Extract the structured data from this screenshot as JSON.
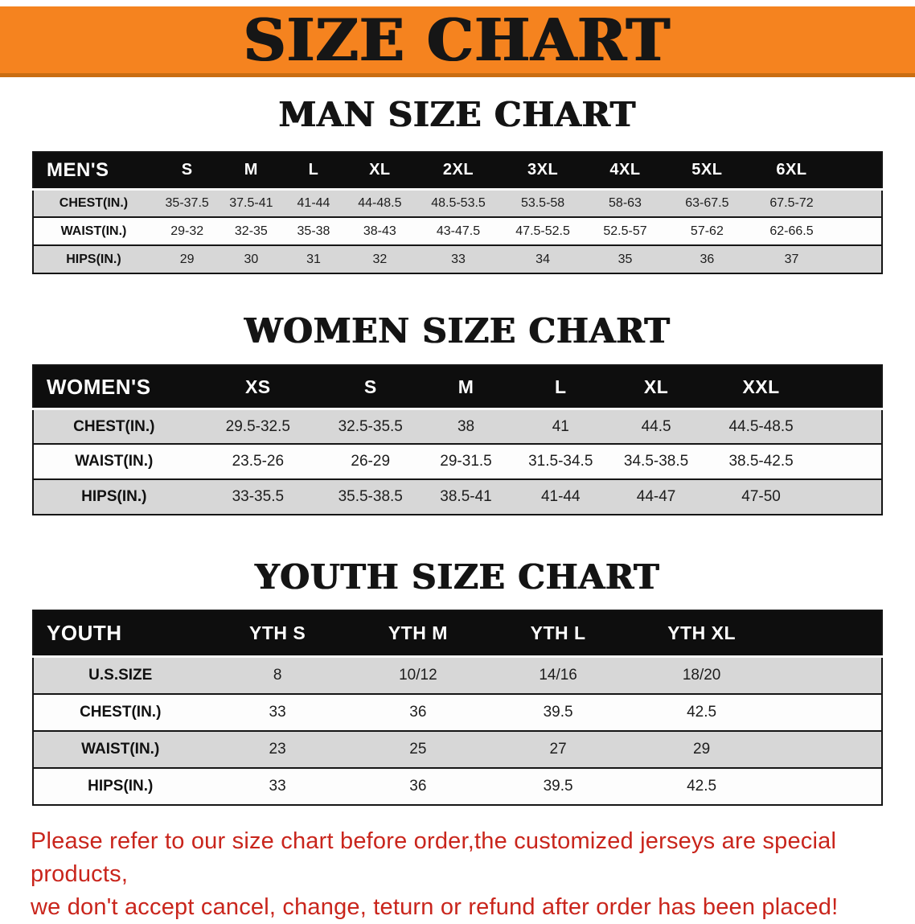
{
  "banner": {
    "title": "SIZE CHART"
  },
  "colors": {
    "banner_orange": "#f5831f",
    "banner_edge": "#c96d12",
    "header_black": "#0e0e0e",
    "row_gray": "#d7d7d7",
    "row_white": "#fdfdfd",
    "disclaimer_red": "#c9251c"
  },
  "sections": [
    {
      "heading": "MAN SIZE CHART",
      "table": {
        "header": [
          "MEN'S",
          "S",
          "M",
          "L",
          "XL",
          "2XL",
          "3XL",
          "4XL",
          "5XL",
          "6XL"
        ],
        "rows": [
          {
            "label": "CHEST(IN.)",
            "values": [
              "35-37.5",
              "37.5-41",
              "41-44",
              "44-48.5",
              "48.5-53.5",
              "53.5-58",
              "58-63",
              "63-67.5",
              "67.5-72"
            ]
          },
          {
            "label": "WAIST(IN.)",
            "values": [
              "29-32",
              "32-35",
              "35-38",
              "38-43",
              "43-47.5",
              "47.5-52.5",
              "52.5-57",
              "57-62",
              "62-66.5"
            ]
          },
          {
            "label": "HIPS(IN.)",
            "values": [
              "29",
              "30",
              "31",
              "32",
              "33",
              "34",
              "35",
              "36",
              "37"
            ]
          }
        ]
      }
    },
    {
      "heading": "WOMEN SIZE CHART",
      "table": {
        "header": [
          "WOMEN'S",
          "XS",
          "S",
          "M",
          "L",
          "XL",
          "XXL"
        ],
        "rows": [
          {
            "label": "CHEST(IN.)",
            "values": [
              "29.5-32.5",
              "32.5-35.5",
              "38",
              "41",
              "44.5",
              "44.5-48.5"
            ]
          },
          {
            "label": "WAIST(IN.)",
            "values": [
              "23.5-26",
              "26-29",
              "29-31.5",
              "31.5-34.5",
              "34.5-38.5",
              "38.5-42.5"
            ]
          },
          {
            "label": "HIPS(IN.)",
            "values": [
              "33-35.5",
              "35.5-38.5",
              "38.5-41",
              "41-44",
              "44-47",
              "47-50"
            ]
          }
        ]
      }
    },
    {
      "heading": "YOUTH SIZE CHART",
      "table": {
        "header": [
          "YOUTH",
          "YTH S",
          "YTH M",
          "YTH L",
          "YTH XL"
        ],
        "rows": [
          {
            "label": "U.S.SIZE",
            "values": [
              "8",
              "10/12",
              "14/16",
              "18/20"
            ]
          },
          {
            "label": "CHEST(IN.)",
            "values": [
              "33",
              "36",
              "39.5",
              "42.5"
            ]
          },
          {
            "label": "WAIST(IN.)",
            "values": [
              "23",
              "25",
              "27",
              "29"
            ]
          },
          {
            "label": "HIPS(IN.)",
            "values": [
              "33",
              "36",
              "39.5",
              "42.5"
            ]
          }
        ]
      }
    }
  ],
  "disclaimer": {
    "line1": "Please refer to our size chart before order,the customized jerseys are special products,",
    "line2": "we don't accept cancel, change, teturn or refund after order has been placed!"
  }
}
